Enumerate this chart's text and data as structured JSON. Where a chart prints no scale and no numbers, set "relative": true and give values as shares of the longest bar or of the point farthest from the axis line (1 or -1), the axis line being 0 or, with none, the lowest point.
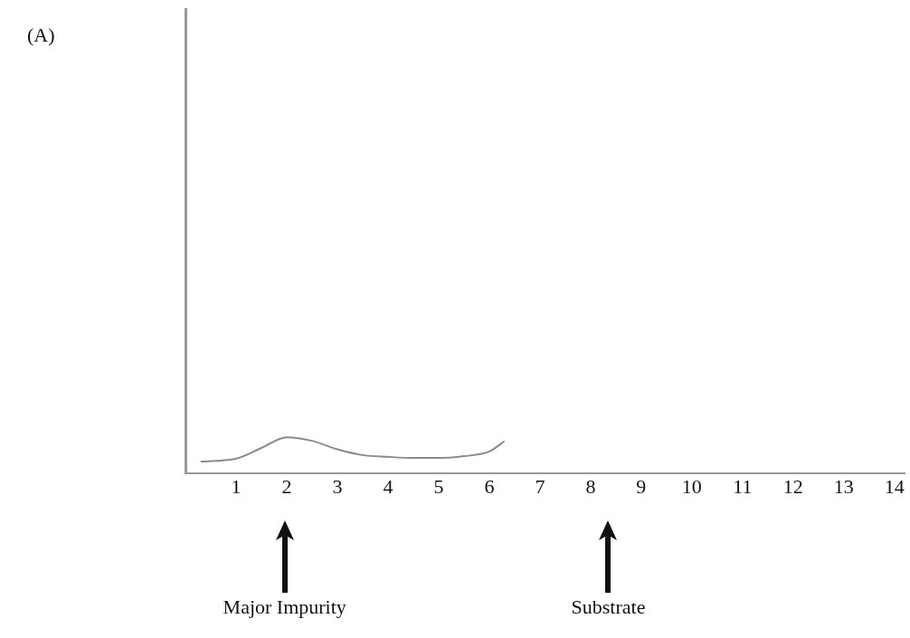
{
  "chart_data": {
    "type": "line",
    "relative": true,
    "xlim": [
      0,
      14.2
    ],
    "xticks": [
      1,
      2,
      3,
      4,
      5,
      6,
      7,
      8,
      9,
      10,
      11,
      12,
      13,
      14
    ],
    "series": [
      {
        "color": "#8a8a8a",
        "x": [
          0.3,
          1,
          1.5,
          2,
          2.5,
          3,
          3.5,
          4,
          4.5,
          5,
          5.5,
          6,
          6.3
        ],
        "values": [
          0.32,
          0.4,
          0.7,
          1,
          0.9,
          0.66,
          0.5,
          0.45,
          0.42,
          0.42,
          0.47,
          0.6,
          0.89
        ]
      }
    ],
    "annotations": [
      "(A)",
      "Major Impurity",
      "Substrate"
    ],
    "grid": false,
    "legend": false,
    "marker": "none",
    "line_style": "solid"
  }
}
